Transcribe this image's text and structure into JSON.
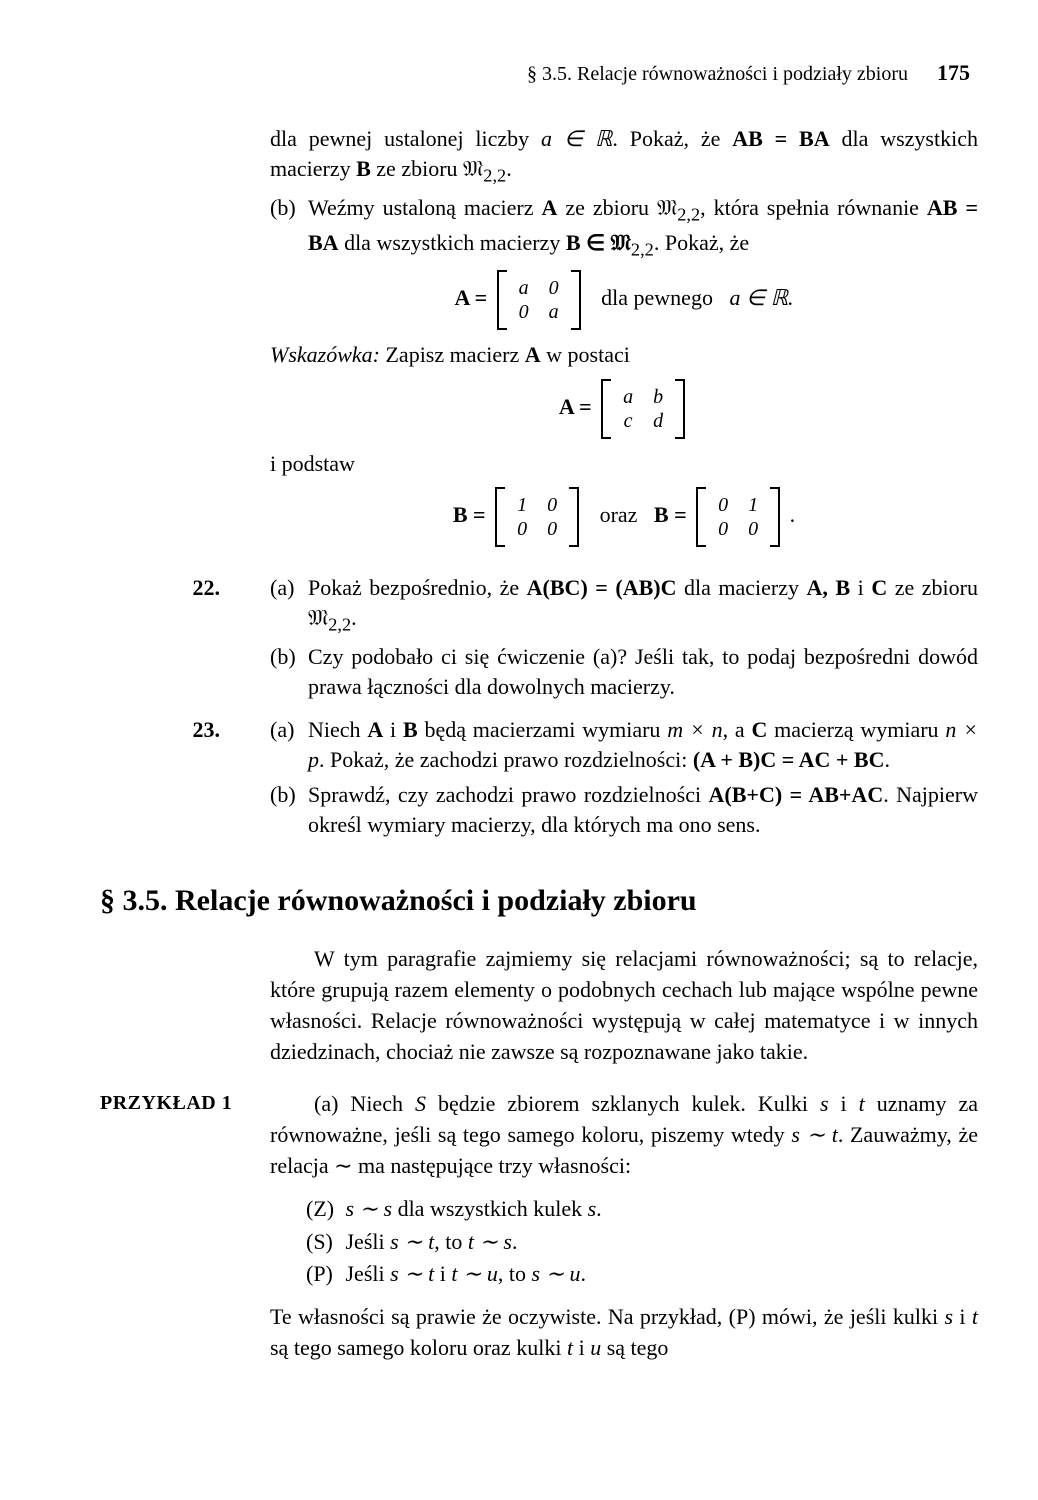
{
  "header": {
    "section_ref": "§ 3.5. Relacje równoważności i podziały zbioru",
    "page_number": "175"
  },
  "cont": {
    "line1_pre": "dla pewnej ustalonej liczby ",
    "line1_math": "a ∈ ℝ",
    "line1_mid": ". Pokaż, że ",
    "line1_ab": "AB = BA",
    "line1_post": " dla wszystkich macierzy ",
    "line1_b": "B",
    "line1_end": " ze zbioru 𝔐",
    "line1_sub": "2,2",
    "line1_dot": "."
  },
  "partb": {
    "label": "(b)",
    "text1": "Weźmy ustaloną macierz ",
    "A": "A",
    "text2": " ze zbioru 𝔐",
    "sub": "2,2",
    "text3": ", która spełnia równanie ",
    "ab": "AB = BA",
    "text4": " dla wszystkich macierzy ",
    "bin": "B ∈ 𝔐",
    "text5": ". Pokaż, że"
  },
  "matrixA1": {
    "lhs": "A =",
    "rows": [
      [
        "a",
        "0"
      ],
      [
        "0",
        "a"
      ]
    ],
    "post": "dla pewnego",
    "cond": "a ∈ ℝ."
  },
  "hint": {
    "label": "Wskazówka:",
    "text": " Zapisz macierz ",
    "A": "A",
    "text2": " w postaci"
  },
  "matrixA2": {
    "lhs": "A =",
    "rows": [
      [
        "a",
        "b"
      ],
      [
        "c",
        "d"
      ]
    ]
  },
  "ipodstaw": "i podstaw",
  "matrixB1": {
    "lhs": "B =",
    "rows": [
      [
        "1",
        "0"
      ],
      [
        "0",
        "0"
      ]
    ]
  },
  "oraz": "oraz",
  "matrixB2": {
    "lhs": "B =",
    "rows": [
      [
        "0",
        "1"
      ],
      [
        "0",
        "0"
      ]
    ],
    "dot": "."
  },
  "ex22": {
    "num": "22.",
    "a_label": "(a)",
    "a_text1": "Pokaż bezpośrednio, że ",
    "a_eq": "A(BC) = (AB)C",
    "a_text2": " dla macierzy ",
    "a_abc": "A, B",
    "a_i": " i ",
    "a_c": "C",
    "a_text3": " ze zbioru 𝔐",
    "a_sub": "2,2",
    "a_dot": ".",
    "b_label": "(b)",
    "b_text": "Czy podobało ci się ćwiczenie (a)? Jeśli tak, to podaj bezpośredni dowód prawa łączności dla dowolnych macierzy."
  },
  "ex23": {
    "num": "23.",
    "a_label": "(a)",
    "a_text1": "Niech ",
    "a_ab": "A",
    "a_i1": " i ",
    "a_b": "B",
    "a_text2": " będą macierzami wymiaru ",
    "a_mn": "m × n",
    "a_text3": ", a ",
    "a_c": "C",
    "a_text4": " macierzą wymiaru ",
    "a_np": "n × p",
    "a_text5": ". Pokaż, że zachodzi prawo rozdzielności: ",
    "a_eq": "(A + B)C = AC + BC",
    "a_dot": ".",
    "b_label": "(b)",
    "b_text1": "Sprawdź, czy zachodzi prawo rozdzielności ",
    "b_eq": "A(B+C) = AB+AC",
    "b_text2": ". Najpierw określ wymiary macierzy, dla których ma ono sens."
  },
  "section": {
    "title": "§ 3.5. Relacje równoważności i podziały zbioru"
  },
  "intro": {
    "text": "W tym paragrafie zajmiemy się relacjami równoważności; są to relacje, które grupują razem elementy o podobnych cechach lub mające wspólne pewne własności. Relacje równoważności występują w całej matematyce i w innych dziedzinach, chociaż nie zawsze są rozpoznawane jako takie."
  },
  "example1": {
    "label": "PRZYKŁAD 1",
    "a_pre": "(a) Niech ",
    "S": "S",
    "a_text1": " będzie zbiorem szklanych kulek. Kulki ",
    "s": "s",
    "a_i": " i ",
    "t": "t",
    "a_text2": " uznamy za równoważne, jeśli są tego samego koloru, piszemy wtedy ",
    "rel1": "s ∼ t",
    "a_text3": ". Zauważmy, że relacja ∼ ma następujące trzy własności:",
    "propZ_tag": "(Z)",
    "propZ": "s ∼ s",
    "propZ_post": " dla wszystkich kulek ",
    "propZ_s": "s",
    "propZ_dot": ".",
    "propS_tag": "(S)",
    "propS_pre": "Jeśli ",
    "propS_1": "s ∼ t",
    "propS_mid": ", to ",
    "propS_2": "t ∼ s",
    "propS_dot": ".",
    "propP_tag": "(P)",
    "propP_pre": "Jeśli ",
    "propP_1": "s ∼ t",
    "propP_i": " i ",
    "propP_2": "t ∼ u",
    "propP_mid": ", to ",
    "propP_3": "s ∼ u",
    "propP_dot": ".",
    "after1": "Te własności są prawie że oczywiste. Na przykład, (P) mówi, że jeśli kulki ",
    "after_s": "s",
    "after_i1": " i ",
    "after_t": "t",
    "after2": " są tego samego koloru oraz kulki ",
    "after_t2": "t",
    "after_i2": " i ",
    "after_u": "u",
    "after3": " są tego"
  },
  "style": {
    "text_color": "#000000",
    "background": "#ffffff",
    "body_fontsize": 22,
    "header_fontsize": 20,
    "section_fontsize": 30
  }
}
